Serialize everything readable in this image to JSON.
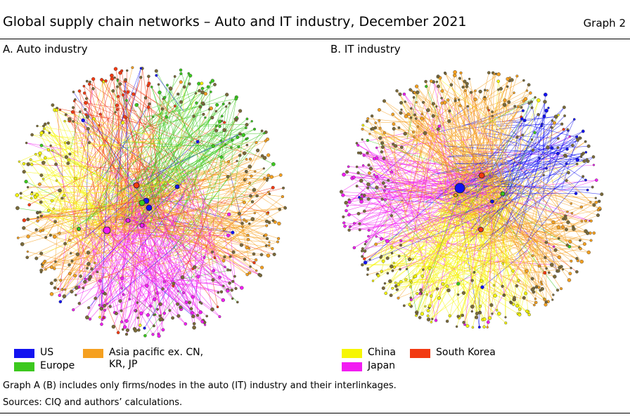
{
  "header": {
    "title": "Global supply chain networks – Auto and IT industry, December 2021",
    "graph_number": "Graph 2"
  },
  "panels": [
    {
      "title": "A. Auto industry"
    },
    {
      "title": "B. IT industry"
    }
  ],
  "legend": {
    "us": {
      "label": "US",
      "color": "#1212f0"
    },
    "europe": {
      "label": "Europe",
      "color": "#3cc81e"
    },
    "asia_pacific": {
      "label": "Asia pacific ex. CN, KR, JP",
      "color": "#f5a020"
    },
    "china": {
      "label": "China",
      "color": "#f6f604"
    },
    "japan": {
      "label": "Japan",
      "color": "#f21cf2"
    },
    "south_korea": {
      "label": "South Korea",
      "color": "#f23a12"
    }
  },
  "notes": {
    "footnote": "Graph A (B) includes only firms/nodes in the auto (IT) industry and their interlinkages.",
    "sources": "Sources: CIQ and authors’ calculations."
  }
}
